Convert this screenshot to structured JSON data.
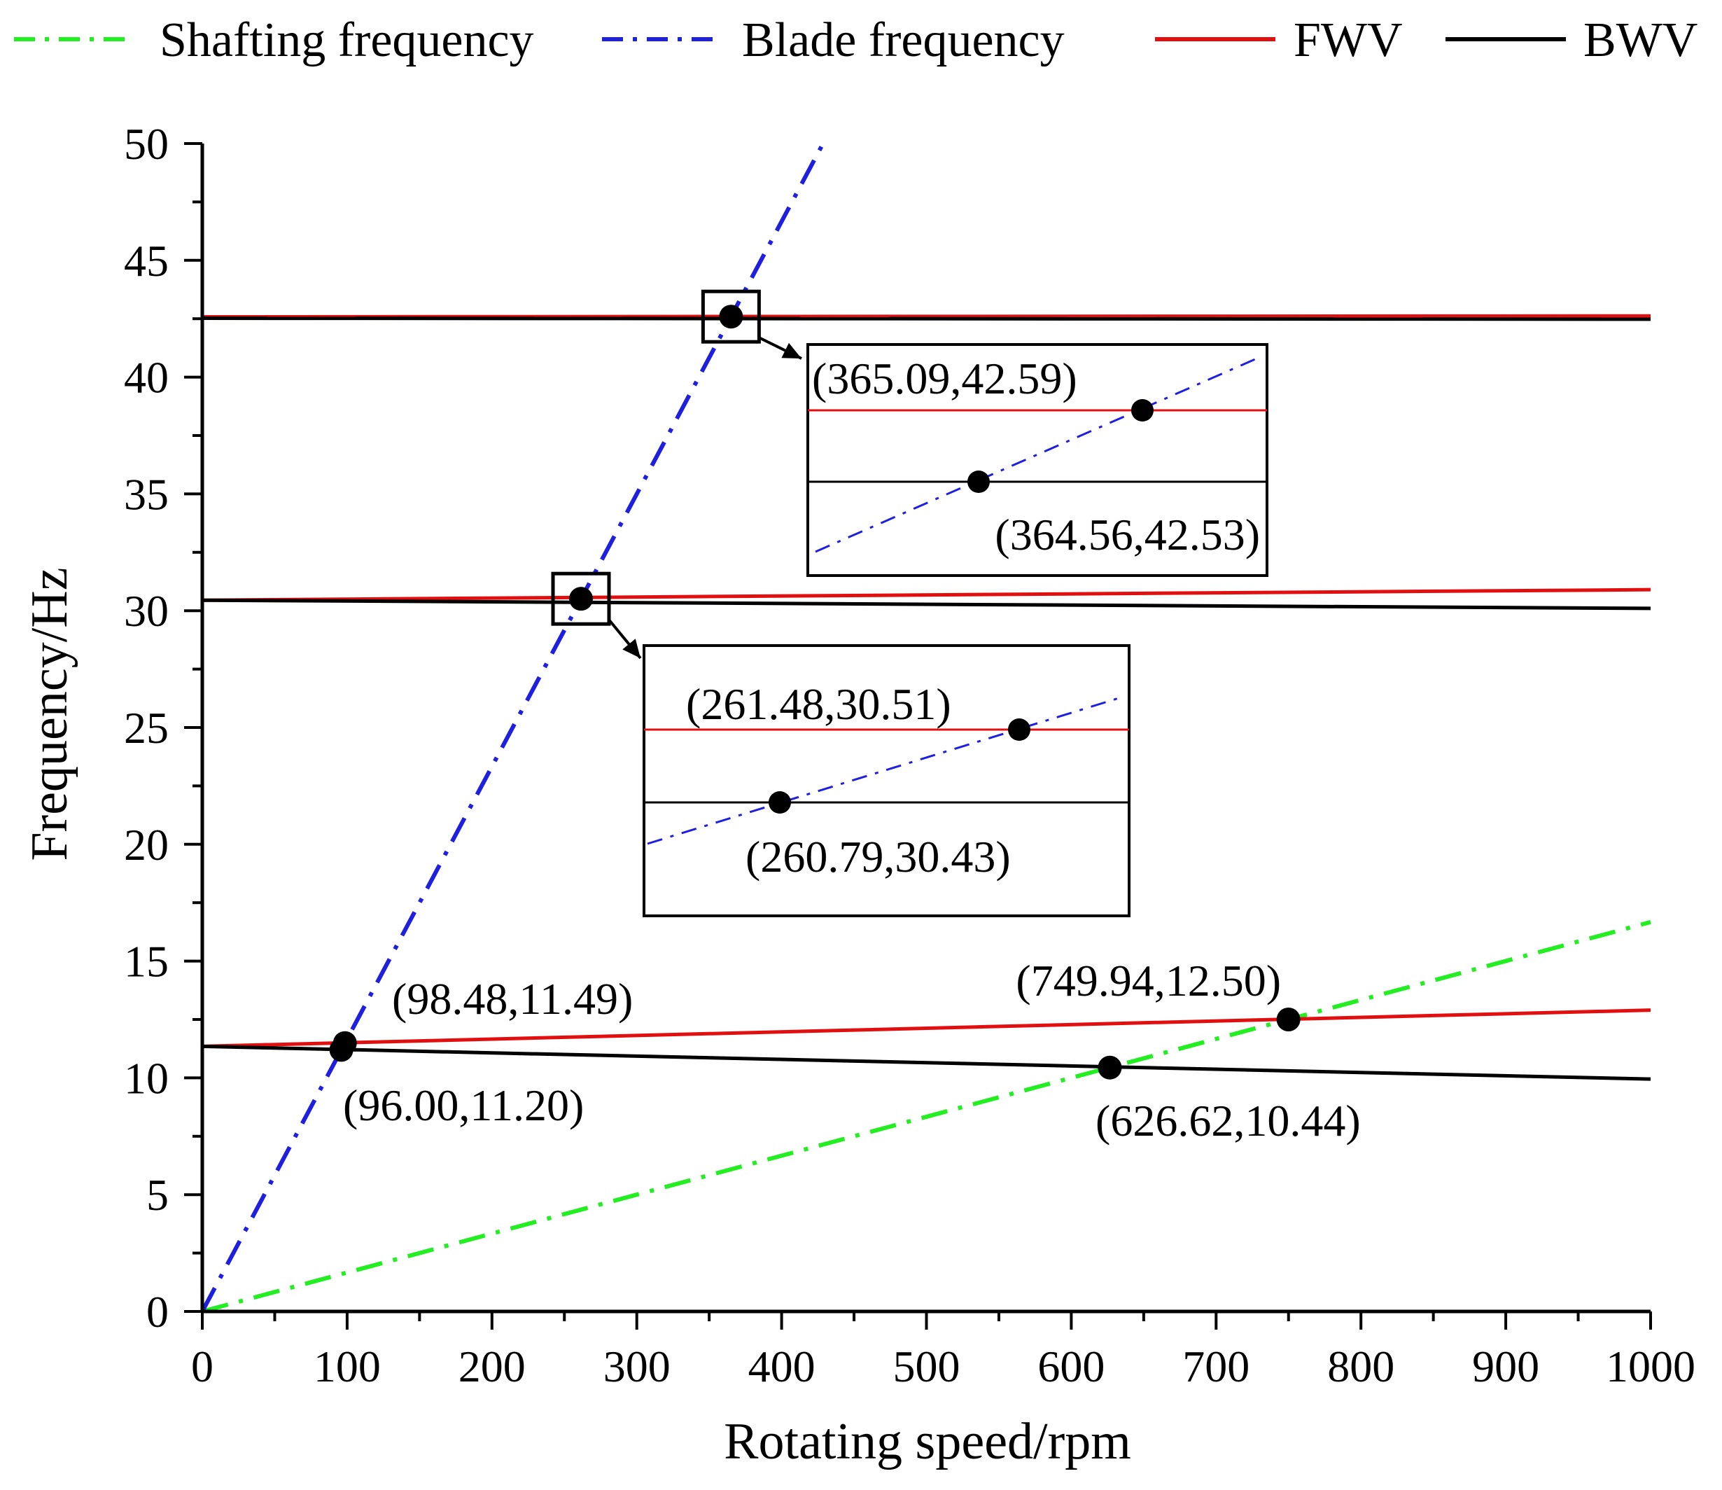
{
  "chart_data": {
    "type": "line",
    "xlabel": "Rotating speed/rpm",
    "ylabel": "Frequency/Hz",
    "xlim": [
      0,
      1000
    ],
    "ylim": [
      0,
      50
    ],
    "xticks": [
      0,
      100,
      200,
      300,
      400,
      500,
      600,
      700,
      800,
      900,
      1000
    ],
    "yticks": [
      0,
      5,
      10,
      15,
      20,
      25,
      30,
      35,
      40,
      45,
      50
    ],
    "grid": false,
    "legend_position": "top",
    "series": [
      {
        "name": "Shafting frequency",
        "color": "#22ee22",
        "style": "dash-dot",
        "x": [
          0,
          1000
        ],
        "y": [
          0,
          16.67
        ]
      },
      {
        "name": "Blade frequency",
        "color": "#1f1fe0",
        "style": "dash-dot",
        "x": [
          0,
          428.6
        ],
        "y": [
          0,
          50
        ]
      },
      {
        "name": "FWV",
        "color": "#e01010",
        "style": "solid",
        "segments": [
          {
            "x": [
              0,
              1000
            ],
            "y": [
              11.35,
              12.9
            ]
          },
          {
            "x": [
              0,
              1000
            ],
            "y": [
              30.45,
              30.9
            ]
          },
          {
            "x": [
              0,
              1000
            ],
            "y": [
              42.58,
              42.62
            ]
          }
        ]
      },
      {
        "name": "BWV",
        "color": "#000000",
        "style": "solid",
        "segments": [
          {
            "x": [
              0,
              1000
            ],
            "y": [
              11.35,
              9.95
            ]
          },
          {
            "x": [
              0,
              1000
            ],
            "y": [
              30.45,
              30.1
            ]
          },
          {
            "x": [
              0,
              1000
            ],
            "y": [
              42.52,
              42.48
            ]
          }
        ]
      }
    ],
    "points": [
      {
        "x": 98.48,
        "y": 11.49,
        "label": "(98.48,11.49)"
      },
      {
        "x": 96.0,
        "y": 11.2,
        "label": "(96.00,11.20)"
      },
      {
        "x": 749.94,
        "y": 12.5,
        "label": "(749.94,12.50)"
      },
      {
        "x": 626.62,
        "y": 10.44,
        "label": "(626.62,10.44)"
      },
      {
        "x": 261.48,
        "y": 30.51,
        "label": "(261.48,30.51)"
      },
      {
        "x": 260.79,
        "y": 30.43,
        "label": "(260.79,30.43)"
      },
      {
        "x": 365.09,
        "y": 42.59,
        "label": "(365.09,42.59)"
      },
      {
        "x": 364.56,
        "y": 42.53,
        "label": "(364.56,42.53)"
      }
    ],
    "insets": [
      {
        "zoom_of": [
          365.09,
          42.59
        ],
        "upper_label": "(365.09,42.59)",
        "lower_label": "(364.56,42.53)"
      },
      {
        "zoom_of": [
          261.48,
          30.51
        ],
        "upper_label": "(261.48,30.51)",
        "lower_label": "(260.79,30.43)"
      }
    ]
  }
}
